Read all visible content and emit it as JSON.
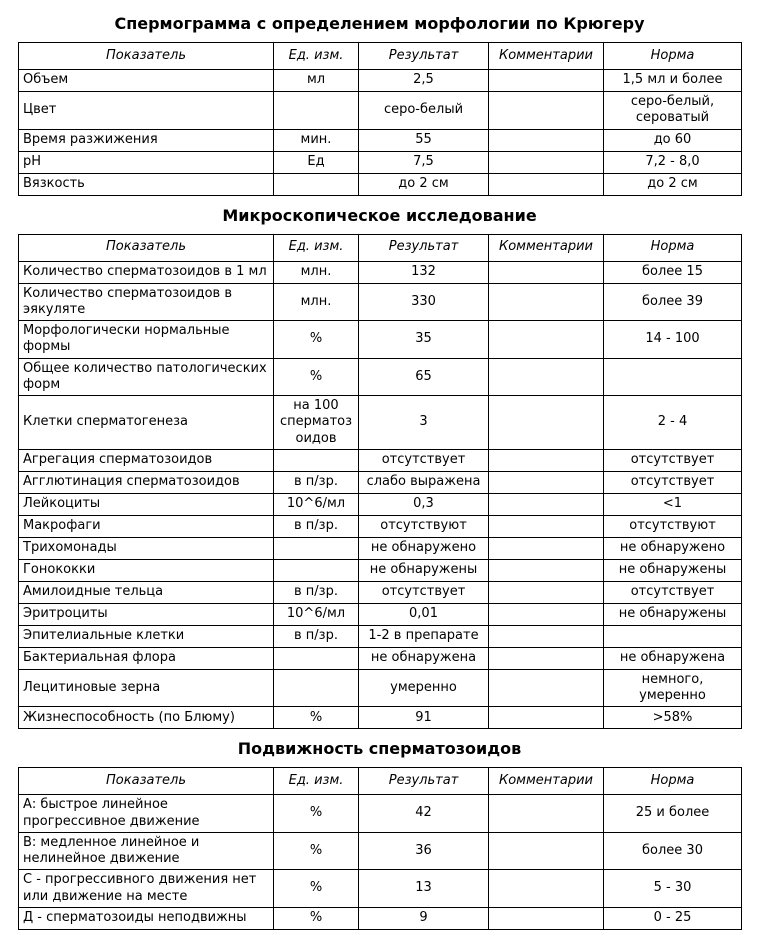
{
  "report": {
    "sections": [
      {
        "title": "Спермограмма с определением морфологии по Крюгеру",
        "headers": [
          "Показатель",
          "Ед. изм.",
          "Результат",
          "Комментарии",
          "Норма"
        ],
        "rows": [
          [
            "Объем",
            "мл",
            "2,5",
            "",
            "1,5 мл и более"
          ],
          [
            "Цвет",
            "",
            "серо-белый",
            "",
            "серо-белый, сероватый"
          ],
          [
            "Время разжижения",
            "мин.",
            "55",
            "",
            "до 60"
          ],
          [
            "рН",
            "Ед",
            "7,5",
            "",
            "7,2 - 8,0"
          ],
          [
            "Вязкость",
            "",
            "до 2 см",
            "",
            "до 2 см"
          ]
        ]
      },
      {
        "title": "Микроскопическое исследование",
        "headers": [
          "Показатель",
          "Ед. изм.",
          "Результат",
          "Комментарии",
          "Норма"
        ],
        "rows": [
          [
            "Количество сперматозоидов в 1 мл",
            "млн.",
            "132",
            "",
            "более 15"
          ],
          [
            "Количество сперматозоидов в эякуляте",
            "млн.",
            "330",
            "",
            "более 39"
          ],
          [
            "Морфологически нормальные формы",
            "%",
            "35",
            "",
            "14 - 100"
          ],
          [
            "Общее количество патологических форм",
            "%",
            "65",
            "",
            ""
          ],
          [
            "Клетки сперматогенеза",
            "на 100 сперматозоидов",
            "3",
            "",
            "2 - 4"
          ],
          [
            "Агрегация сперматозоидов",
            "",
            "отсутствует",
            "",
            "отсутствует"
          ],
          [
            "Агглютинация сперматозоидов",
            "в п/зр.",
            "слабо выражена",
            "",
            "отсутствует"
          ],
          [
            "Лейкоциты",
            "10^6/мл",
            "0,3",
            "",
            "<1"
          ],
          [
            "Макрофаги",
            "в п/зр.",
            "отсутствуют",
            "",
            "отсутствуют"
          ],
          [
            "Трихомонады",
            "",
            "не обнаружено",
            "",
            "не обнаружено"
          ],
          [
            "Гонококки",
            "",
            "не обнаружены",
            "",
            "не обнаружены"
          ],
          [
            "Амилоидные тельца",
            "в п/зр.",
            "отсутствует",
            "",
            "отсутствует"
          ],
          [
            "Эритроциты",
            "10^6/мл",
            "0,01",
            "",
            "не обнаружены"
          ],
          [
            "Эпителиальные клетки",
            "в п/зр.",
            "1-2 в препарате",
            "",
            ""
          ],
          [
            "Бактериальная флора",
            "",
            "не обнаружена",
            "",
            "не обнаружена"
          ],
          [
            "Лецитиновые зерна",
            "",
            "умеренно",
            "",
            "немного, умеренно"
          ],
          [
            "Жизнеспособность (по Блюму)",
            "%",
            "91",
            "",
            ">58%"
          ]
        ]
      },
      {
        "title": "Подвижность сперматозоидов",
        "headers": [
          "Показатель",
          "Ед. изм.",
          "Результат",
          "Комментарии",
          "Норма"
        ],
        "rows": [
          [
            "А: быстрое линейное прогрессивное движение",
            "%",
            "42",
            "",
            "25 и более"
          ],
          [
            "В: медленное линейное и нелинейное движение",
            "%",
            "36",
            "",
            "более 30"
          ],
          [
            "С - прогрессивного движения нет или движение на месте",
            "%",
            "13",
            "",
            "5 - 30"
          ],
          [
            "Д - сперматозоиды неподвижны",
            "%",
            "9",
            "",
            "0 - 25"
          ]
        ]
      }
    ]
  }
}
